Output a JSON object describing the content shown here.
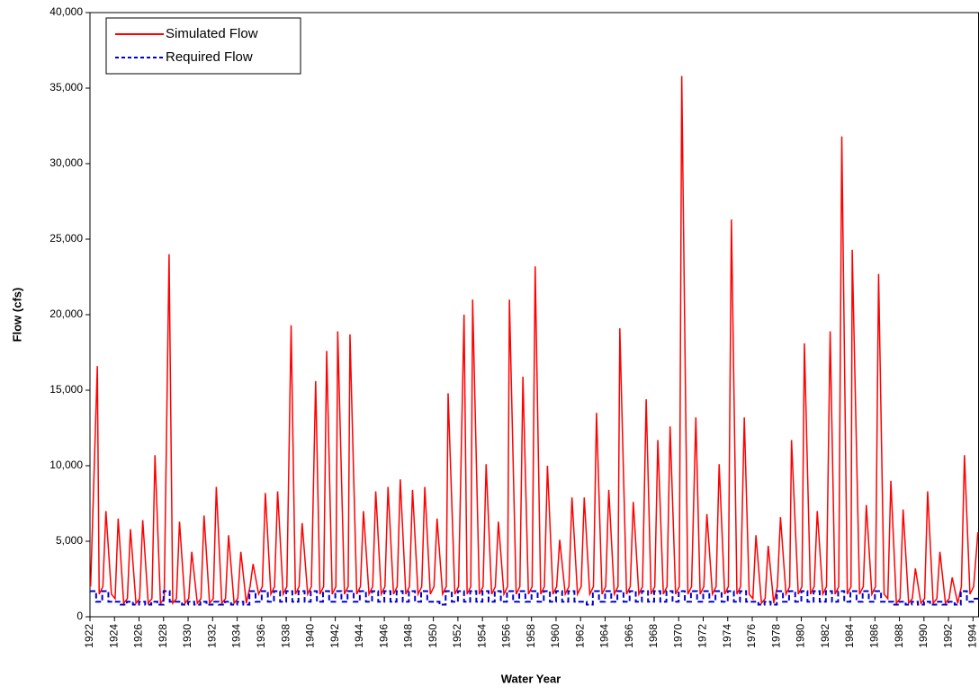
{
  "chart_data": {
    "type": "line",
    "x_label": "Water Year",
    "y_label": "Flow (cfs)",
    "legend": "top-left",
    "grid": false,
    "xlim": [
      1922,
      1994.45
    ],
    "ylim": [
      0,
      40000
    ],
    "xticks": [
      1922,
      1924,
      1926,
      1928,
      1930,
      1932,
      1934,
      1936,
      1938,
      1940,
      1942,
      1944,
      1946,
      1948,
      1950,
      1952,
      1954,
      1956,
      1958,
      1960,
      1962,
      1964,
      1966,
      1968,
      1970,
      1972,
      1974,
      1976,
      1978,
      1980,
      1982,
      1984,
      1986,
      1988,
      1990,
      1992,
      1994
    ],
    "yticks": [
      0,
      {
        "value": 5000,
        "label": "5,000"
      },
      {
        "value": 10000,
        "label": "10,000"
      },
      {
        "value": 15000,
        "label": "15,000"
      },
      {
        "value": 20000,
        "label": "20,000"
      },
      {
        "value": 25000,
        "label": "25,000"
      },
      {
        "value": 30000,
        "label": "30,000"
      },
      {
        "value": 35000,
        "label": "35,000"
      },
      {
        "value": 40000,
        "label": "40,000"
      }
    ],
    "series": [
      {
        "name": "Simulated Flow",
        "color": "#ff0000",
        "dash": "solid",
        "x": [
          1922.05,
          1922.6,
          1922.75,
          1923.05,
          1923.3,
          1923.75,
          1924.05,
          1924.3,
          1924.75,
          1925.05,
          1925.3,
          1925.75,
          1926.05,
          1926.3,
          1926.75,
          1927.05,
          1927.3,
          1927.75,
          1928.05,
          1928.45,
          1928.75,
          1929.05,
          1929.3,
          1929.75,
          1930.05,
          1930.3,
          1930.75,
          1931.05,
          1931.3,
          1931.75,
          1932.05,
          1932.3,
          1932.75,
          1933.05,
          1933.3,
          1933.75,
          1934.05,
          1934.3,
          1934.75,
          1935.05,
          1935.3,
          1935.75,
          1936.05,
          1936.3,
          1936.75,
          1937.05,
          1937.3,
          1937.75,
          1938.05,
          1938.4,
          1938.75,
          1939.05,
          1939.3,
          1939.75,
          1940.05,
          1940.4,
          1940.75,
          1941.05,
          1941.3,
          1941.75,
          1942.05,
          1942.2,
          1942.75,
          1943.05,
          1943.2,
          1943.75,
          1944.05,
          1944.3,
          1944.75,
          1945.05,
          1945.3,
          1945.75,
          1946.05,
          1946.3,
          1946.75,
          1947.05,
          1947.3,
          1947.75,
          1948.05,
          1948.3,
          1948.75,
          1949.05,
          1949.3,
          1949.75,
          1950.05,
          1950.3,
          1950.75,
          1951.05,
          1951.2,
          1951.75,
          1952.05,
          1952.5,
          1952.75,
          1953.05,
          1953.2,
          1953.75,
          1954.05,
          1954.3,
          1954.75,
          1955.05,
          1955.3,
          1955.75,
          1956.05,
          1956.2,
          1956.75,
          1957.05,
          1957.3,
          1957.75,
          1958.05,
          1958.3,
          1958.75,
          1959.05,
          1959.3,
          1959.75,
          1960.05,
          1960.3,
          1960.75,
          1961.05,
          1961.3,
          1961.75,
          1962.05,
          1962.3,
          1962.75,
          1963.05,
          1963.3,
          1963.75,
          1964.05,
          1964.3,
          1964.75,
          1965.05,
          1965.2,
          1965.75,
          1966.05,
          1966.3,
          1966.75,
          1967.05,
          1967.35,
          1967.75,
          1968.05,
          1968.3,
          1968.75,
          1969.05,
          1969.3,
          1969.75,
          1970.05,
          1970.25,
          1970.75,
          1971.05,
          1971.4,
          1971.75,
          1972.05,
          1972.3,
          1972.75,
          1973.05,
          1973.3,
          1973.75,
          1974.05,
          1974.3,
          1974.75,
          1975.05,
          1975.35,
          1975.75,
          1976.05,
          1976.3,
          1976.75,
          1977.05,
          1977.3,
          1977.75,
          1978.05,
          1978.3,
          1978.75,
          1979.05,
          1979.2,
          1979.75,
          1980.05,
          1980.25,
          1980.75,
          1981.05,
          1981.3,
          1981.75,
          1982.05,
          1982.35,
          1982.75,
          1983.05,
          1983.3,
          1983.75,
          1984.05,
          1984.15,
          1984.75,
          1985.05,
          1985.3,
          1985.75,
          1986.05,
          1986.3,
          1986.75,
          1987.05,
          1987.3,
          1987.75,
          1988.05,
          1988.3,
          1988.75,
          1989.05,
          1989.3,
          1989.75,
          1990.05,
          1990.3,
          1990.75,
          1991.05,
          1991.3,
          1991.75,
          1992.05,
          1992.3,
          1992.75,
          1993.05,
          1993.3,
          1993.75,
          1994.05,
          1994.4
        ],
        "values": [
          2000,
          16600,
          1500,
          2000,
          7000,
          1500,
          1200,
          6500,
          900,
          1200,
          5800,
          900,
          1200,
          6400,
          900,
          1200,
          10700,
          900,
          1200,
          24000,
          900,
          1200,
          6300,
          900,
          1200,
          4300,
          900,
          1200,
          6700,
          900,
          1200,
          8600,
          900,
          1200,
          5400,
          900,
          1200,
          4300,
          900,
          2000,
          3500,
          1500,
          2000,
          8200,
          1500,
          2000,
          8300,
          1500,
          2000,
          19300,
          1500,
          2000,
          6200,
          1500,
          2000,
          15600,
          1500,
          2000,
          17600,
          1500,
          2000,
          18900,
          1500,
          2000,
          18700,
          1500,
          2000,
          7000,
          1500,
          2000,
          8300,
          1500,
          2000,
          8600,
          1500,
          2000,
          9100,
          1500,
          2000,
          8400,
          1500,
          2000,
          8600,
          1500,
          2000,
          6500,
          1500,
          2000,
          14800,
          1500,
          2000,
          20000,
          1500,
          2000,
          21000,
          1500,
          2000,
          10100,
          1500,
          2000,
          6300,
          1500,
          2000,
          21000,
          1500,
          2000,
          15900,
          1500,
          2000,
          23200,
          1500,
          2000,
          10000,
          1500,
          2000,
          5100,
          1500,
          2000,
          7900,
          1500,
          2000,
          7900,
          1500,
          2000,
          13500,
          1500,
          2000,
          8400,
          1500,
          2000,
          19100,
          1500,
          2000,
          7600,
          1500,
          2000,
          14400,
          1500,
          2000,
          11700,
          1500,
          2000,
          12600,
          1500,
          2000,
          35800,
          1500,
          2000,
          13200,
          1500,
          2000,
          6800,
          1500,
          2000,
          10100,
          1500,
          2000,
          26300,
          1500,
          2000,
          13200,
          1500,
          1200,
          5400,
          900,
          1200,
          4700,
          900,
          2000,
          6600,
          1500,
          2000,
          11700,
          1500,
          2000,
          18100,
          1500,
          2000,
          7000,
          1500,
          2000,
          18900,
          1500,
          2000,
          31800,
          1500,
          2000,
          24300,
          1500,
          2000,
          7400,
          1500,
          2000,
          22700,
          1500,
          1200,
          9000,
          900,
          1200,
          7100,
          900,
          1200,
          3200,
          900,
          1200,
          8300,
          900,
          1200,
          4300,
          900,
          1200,
          2600,
          900,
          2000,
          10700,
          1500,
          2000,
          5600
        ]
      },
      {
        "name": "Required Flow",
        "color": "#0000cc",
        "dash": "dashed",
        "step": true,
        "x": [
          1922,
          1922.5,
          1923,
          1923.5,
          1924,
          1924.5,
          1925,
          1925.5,
          1926,
          1926.5,
          1927,
          1927.5,
          1928,
          1928.5,
          1929,
          1929.5,
          1930,
          1930.5,
          1931,
          1931.5,
          1932,
          1932.5,
          1933,
          1933.5,
          1934,
          1934.5,
          1935,
          1935.5,
          1936,
          1936.5,
          1937,
          1937.5,
          1938,
          1938.5,
          1939,
          1939.5,
          1940,
          1940.5,
          1941,
          1941.5,
          1942,
          1942.5,
          1943,
          1943.5,
          1944,
          1944.5,
          1945,
          1945.5,
          1946,
          1946.5,
          1947,
          1947.5,
          1948,
          1948.5,
          1949,
          1949.5,
          1950,
          1950.5,
          1951,
          1951.5,
          1952,
          1952.5,
          1953,
          1953.5,
          1954,
          1954.5,
          1955,
          1955.5,
          1956,
          1956.5,
          1957,
          1957.5,
          1958,
          1958.5,
          1959,
          1959.5,
          1960,
          1960.5,
          1961,
          1961.5,
          1962,
          1962.5,
          1963,
          1963.5,
          1964,
          1964.5,
          1965,
          1965.5,
          1966,
          1966.5,
          1967,
          1967.5,
          1968,
          1968.5,
          1969,
          1969.5,
          1970,
          1970.5,
          1971,
          1971.5,
          1972,
          1972.5,
          1973,
          1973.5,
          1974,
          1974.5,
          1975,
          1975.5,
          1976,
          1976.5,
          1977,
          1977.5,
          1978,
          1978.5,
          1979,
          1979.5,
          1980,
          1980.5,
          1981,
          1981.5,
          1982,
          1982.5,
          1983,
          1983.5,
          1984,
          1984.5,
          1985,
          1985.5,
          1986,
          1986.5,
          1987,
          1987.5,
          1988,
          1988.5,
          1989,
          1989.5,
          1990,
          1990.5,
          1991,
          1991.5,
          1992,
          1992.5,
          1993,
          1993.5,
          1994,
          1994.45
        ],
        "values": [
          1700,
          1000,
          1700,
          1000,
          1000,
          800,
          1000,
          800,
          1000,
          800,
          1000,
          800,
          1700,
          1000,
          1000,
          800,
          1000,
          800,
          1000,
          800,
          1000,
          800,
          1000,
          800,
          1000,
          800,
          1700,
          1000,
          1700,
          1000,
          1700,
          1000,
          1700,
          1000,
          1700,
          1000,
          1700,
          1000,
          1700,
          1000,
          1700,
          1000,
          1700,
          1000,
          1700,
          1000,
          1700,
          1000,
          1700,
          1000,
          1700,
          1000,
          1700,
          1000,
          1700,
          1000,
          1000,
          800,
          1700,
          1000,
          1700,
          1000,
          1700,
          1000,
          1700,
          1000,
          1700,
          1000,
          1700,
          1000,
          1700,
          1000,
          1700,
          1000,
          1700,
          1000,
          1700,
          1000,
          1700,
          1000,
          1000,
          800,
          1700,
          1000,
          1700,
          1000,
          1700,
          1000,
          1700,
          1000,
          1700,
          1000,
          1700,
          1000,
          1700,
          1000,
          1700,
          1000,
          1700,
          1000,
          1700,
          1000,
          1700,
          1000,
          1700,
          1000,
          1700,
          1000,
          1000,
          800,
          1000,
          800,
          1700,
          1000,
          1700,
          1000,
          1700,
          1000,
          1700,
          1000,
          1700,
          1000,
          1700,
          1000,
          1700,
          1000,
          1700,
          1000,
          1700,
          1000,
          1000,
          800,
          1000,
          800,
          1000,
          800,
          1000,
          800,
          1000,
          800,
          1000,
          800,
          1700,
          1000,
          1200,
          1200
        ]
      }
    ]
  }
}
